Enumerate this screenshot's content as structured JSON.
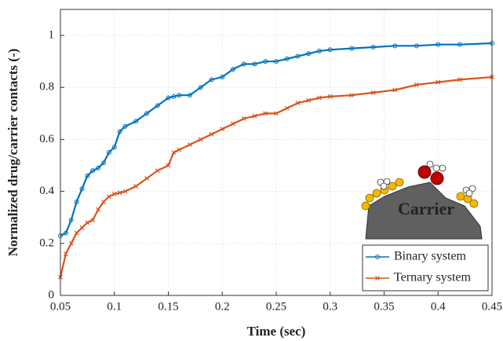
{
  "chart_data": {
    "type": "line",
    "x_label": "Time (sec)",
    "y_label": "Normalized drug/carrier contacts (-)",
    "x": [
      0.05,
      0.055,
      0.06,
      0.065,
      0.07,
      0.075,
      0.08,
      0.085,
      0.09,
      0.095,
      0.1,
      0.105,
      0.11,
      0.12,
      0.13,
      0.14,
      0.15,
      0.155,
      0.16,
      0.17,
      0.18,
      0.19,
      0.2,
      0.21,
      0.22,
      0.23,
      0.24,
      0.25,
      0.26,
      0.27,
      0.28,
      0.29,
      0.3,
      0.32,
      0.34,
      0.36,
      0.38,
      0.4,
      0.42,
      0.45
    ],
    "series": [
      {
        "name": "Binary system",
        "color": "#0072bd",
        "marker": "circle",
        "values": [
          0.23,
          0.24,
          0.29,
          0.36,
          0.41,
          0.46,
          0.48,
          0.49,
          0.51,
          0.55,
          0.57,
          0.63,
          0.65,
          0.67,
          0.7,
          0.73,
          0.76,
          0.765,
          0.77,
          0.77,
          0.8,
          0.83,
          0.84,
          0.87,
          0.89,
          0.89,
          0.9,
          0.9,
          0.91,
          0.92,
          0.93,
          0.94,
          0.945,
          0.95,
          0.955,
          0.96,
          0.96,
          0.965,
          0.965,
          0.97
        ]
      },
      {
        "name": "Ternary system",
        "color": "#d95319",
        "marker": "x",
        "values": [
          0.07,
          0.16,
          0.2,
          0.24,
          0.26,
          0.28,
          0.29,
          0.33,
          0.36,
          0.38,
          0.39,
          0.395,
          0.4,
          0.42,
          0.45,
          0.48,
          0.5,
          0.55,
          0.56,
          0.58,
          0.6,
          0.62,
          0.64,
          0.66,
          0.68,
          0.69,
          0.7,
          0.7,
          0.72,
          0.74,
          0.75,
          0.76,
          0.765,
          0.77,
          0.78,
          0.79,
          0.81,
          0.82,
          0.83,
          0.84
        ]
      }
    ],
    "xlim": [
      0.05,
      0.45
    ],
    "ylim": [
      0,
      1.1
    ],
    "xticks": [
      0.05,
      0.1,
      0.15,
      0.2,
      0.25,
      0.3,
      0.35,
      0.4,
      0.45
    ],
    "yticks": [
      0,
      0.2,
      0.4,
      0.6,
      0.8,
      1
    ],
    "grid": true,
    "legend": "lower right",
    "inset_label": "Carrier"
  }
}
